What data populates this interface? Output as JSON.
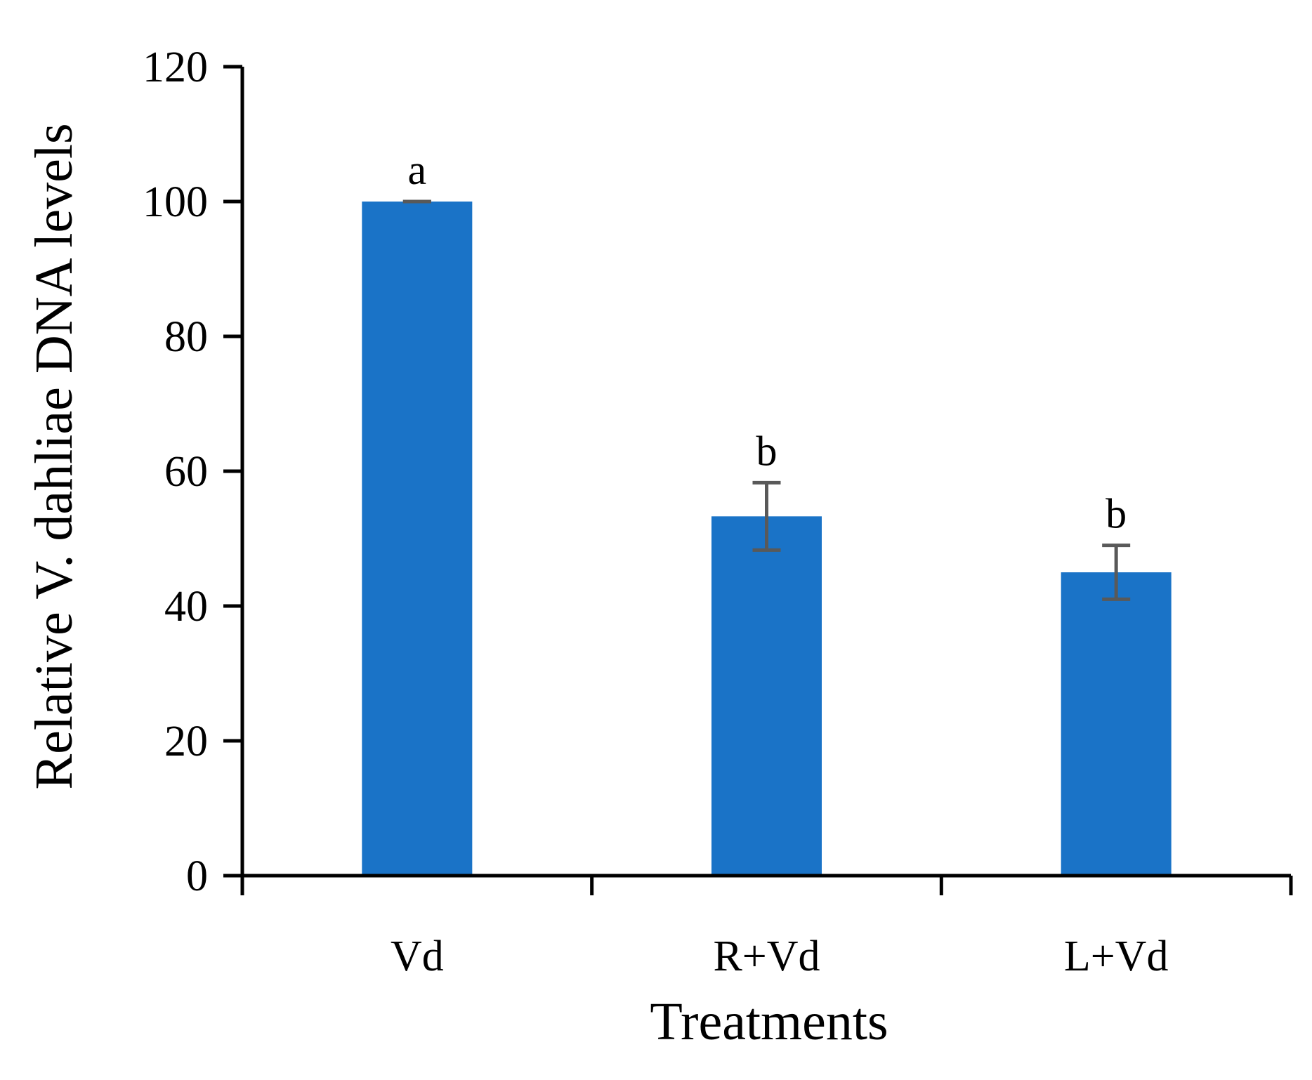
{
  "chart_data": {
    "type": "bar",
    "title": "",
    "xlabel": "Treatments",
    "ylabel": "Relative V. dahliae DNA levels",
    "categories": [
      "Vd",
      "R+Vd",
      "L+Vd"
    ],
    "values": [
      100,
      53.3,
      45
    ],
    "error": [
      0,
      5,
      4
    ],
    "significance": [
      "a",
      "b",
      "b"
    ],
    "ylim": [
      0,
      120
    ],
    "yticks": [
      0,
      20,
      40,
      60,
      80,
      100,
      120
    ],
    "ytick_labels": [
      "0",
      "20",
      "40",
      "60",
      "80",
      "100",
      "120"
    ],
    "grid": false,
    "colors": {
      "bar": "#1A73C7",
      "error": "#595959",
      "axis": "#000000"
    }
  }
}
